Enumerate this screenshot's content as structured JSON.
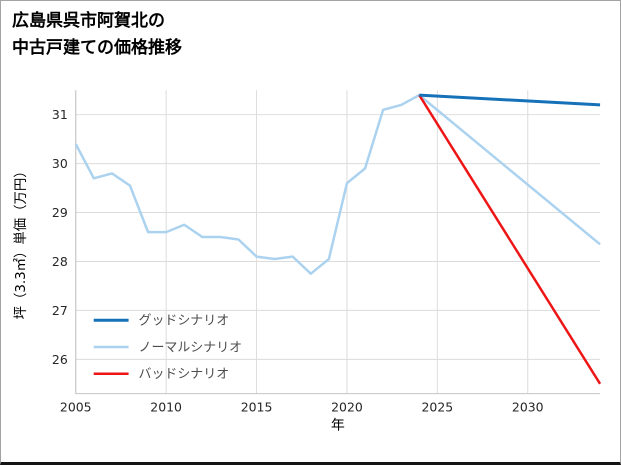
{
  "title": {
    "line1": "広島県呉市阿賀北の",
    "line2": "中古戸建ての価格推移"
  },
  "chart_data": {
    "type": "line",
    "title": "広島県呉市阿賀北の中古戸建ての価格推移",
    "xlabel": "年",
    "ylabel": "坪（3.3㎡）単価（万円）",
    "xlim": [
      2005,
      2034
    ],
    "ylim": [
      25.3,
      31.5
    ],
    "x_ticks": [
      2005,
      2010,
      2015,
      2020,
      2025,
      2030
    ],
    "y_ticks": [
      26,
      27,
      28,
      29,
      30,
      31
    ],
    "grid": true,
    "grid_color": "#dcdcdc",
    "spine_color": "#c4c4c4",
    "tick_label_color": "#262626",
    "legend_position": "lower-left",
    "legend_text_color": "#4d4d4d",
    "series": [
      {
        "id": "good-scenario",
        "name": "グッドシナリオ",
        "color": "#1571b8",
        "width": 3,
        "x": [
          2024,
          2034
        ],
        "y": [
          31.4,
          31.2
        ]
      },
      {
        "id": "normal-scenario",
        "name": "ノーマルシナリオ",
        "color": "#abd2ef",
        "width": 2.5,
        "x": [
          2005,
          2006,
          2007,
          2008,
          2009,
          2010,
          2011,
          2012,
          2013,
          2014,
          2015,
          2016,
          2017,
          2018,
          2019,
          2020,
          2021,
          2022,
          2023,
          2024,
          2034
        ],
        "y": [
          30.4,
          29.7,
          29.8,
          29.55,
          28.6,
          28.6,
          28.75,
          28.5,
          28.5,
          28.45,
          28.1,
          28.05,
          28.1,
          27.75,
          28.05,
          29.6,
          29.9,
          31.1,
          31.2,
          31.4,
          28.35
        ]
      },
      {
        "id": "bad-scenario",
        "name": "バッドシナリオ",
        "color": "#ed1515",
        "width": 2.5,
        "x": [
          2024,
          2034
        ],
        "y": [
          31.4,
          25.5
        ]
      }
    ]
  }
}
